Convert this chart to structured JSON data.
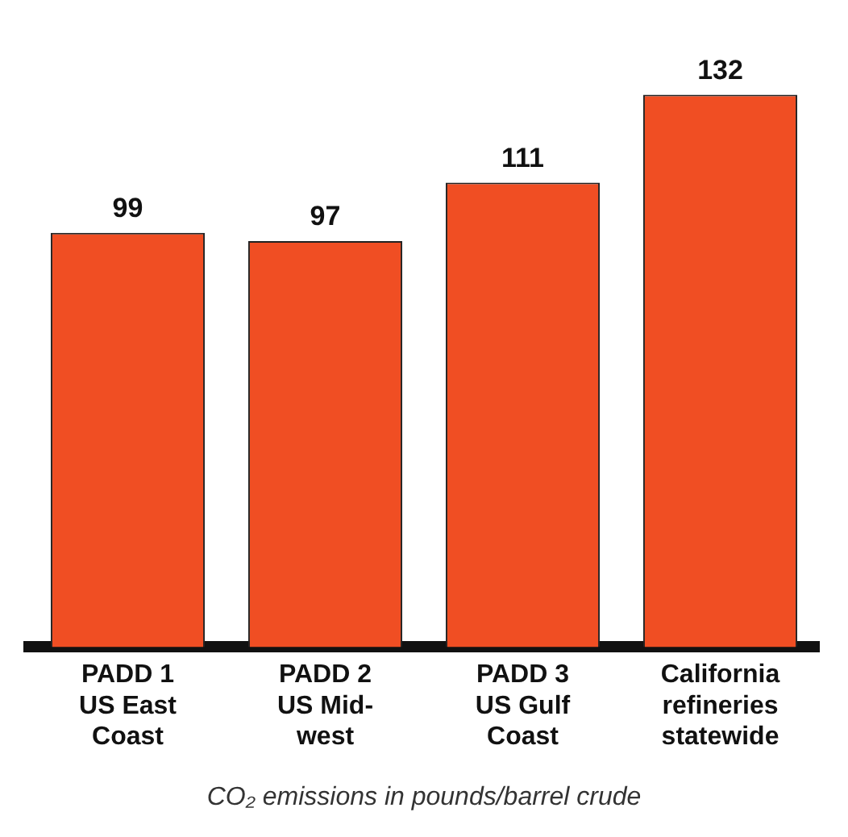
{
  "chart_data": {
    "type": "bar",
    "categories": [
      "PADD 1\nUS East\nCoast",
      "PADD 2\nUS Mid-\nwest",
      "PADD 3\nUS Gulf\nCoast",
      "California\nrefineries\nstatewide"
    ],
    "values": [
      99,
      97,
      111,
      132
    ],
    "color": "#f04e23",
    "data_labels": true,
    "tick_labels": "x",
    "grid": false,
    "legend": false,
    "xlabel": "CO₂ emissions in pounds/barrel crude"
  }
}
